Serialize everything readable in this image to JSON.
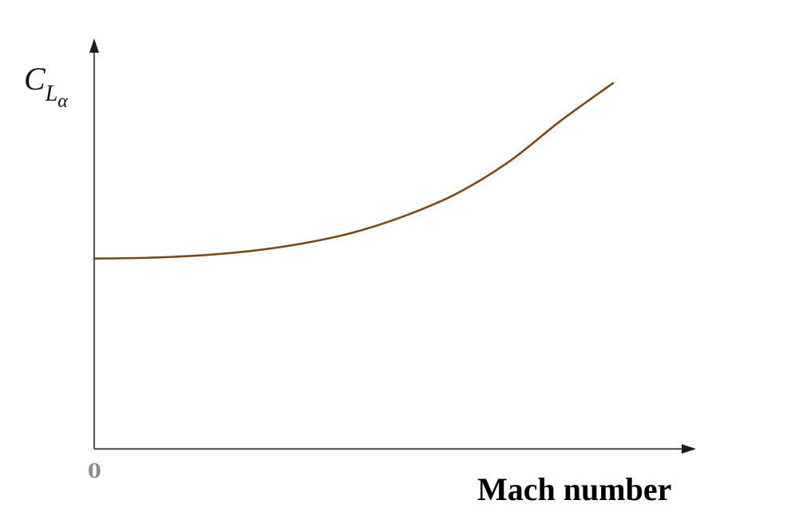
{
  "chart_data": {
    "type": "line",
    "title": "",
    "xlabel": "Mach number",
    "ylabel": {
      "symbol": "C",
      "subscript": "L",
      "sub_subscript": "α"
    },
    "origin_label": "0",
    "x_ticks_labeled": [
      "0"
    ],
    "grid": false,
    "series": [
      {
        "color": "#7a4a14",
        "x": [
          0,
          0.1,
          0.2,
          0.3,
          0.4,
          0.5,
          0.6,
          0.7,
          0.8,
          0.9,
          1.0
        ],
        "y": [
          0.51,
          0.512,
          0.518,
          0.53,
          0.55,
          0.58,
          0.625,
          0.685,
          0.77,
          0.88,
          0.98
        ]
      }
    ],
    "xlim": [
      0,
      1.16
    ],
    "ylim": [
      0,
      1.1
    ]
  }
}
